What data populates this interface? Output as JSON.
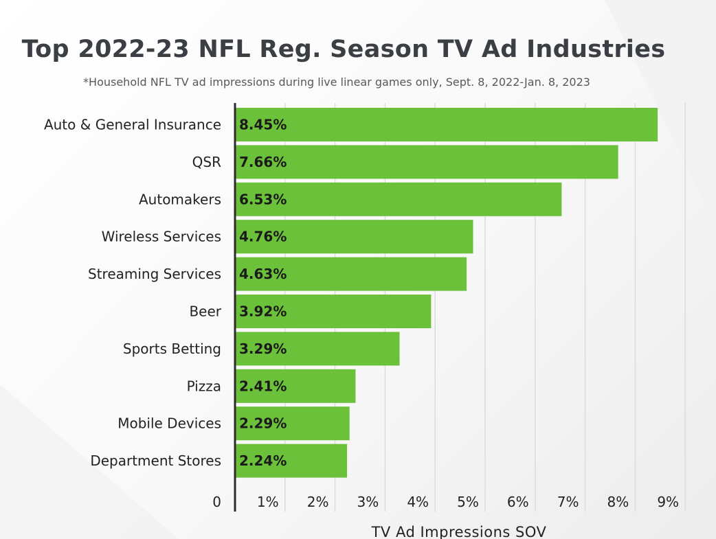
{
  "chart_data": {
    "type": "bar",
    "orientation": "horizontal",
    "title": "Top 2022-23 NFL Reg. Season TV Ad Industries",
    "subtitle": "*Household NFL TV ad impressions during live linear games only, Sept. 8, 2022-Jan. 8, 2023",
    "xlabel": "TV Ad Impressions SOV",
    "ylabel": "",
    "categories": [
      "Auto & General Insurance",
      "QSR",
      "Automakers",
      "Wireless Services",
      "Streaming Services",
      "Beer",
      "Sports Betting",
      "Pizza",
      "Mobile Devices",
      "Department Stores"
    ],
    "values": [
      8.45,
      7.66,
      6.53,
      4.76,
      4.63,
      3.92,
      3.29,
      2.41,
      2.29,
      2.24
    ],
    "value_labels": [
      "8.45%",
      "7.66%",
      "6.53%",
      "4.76%",
      "4.63%",
      "3.92%",
      "3.29%",
      "2.41%",
      "2.29%",
      "2.24%"
    ],
    "xlim": [
      0,
      9
    ],
    "x_ticks": [
      0,
      1,
      2,
      3,
      4,
      5,
      6,
      7,
      8,
      9
    ],
    "x_tick_labels": [
      "0",
      "1%",
      "2%",
      "3%",
      "4%",
      "5%",
      "6%",
      "7%",
      "8%",
      "9%"
    ],
    "grid": "vertical",
    "legend": "none",
    "bar_color": "#6cc13a",
    "grid_color": "#dcdcdc",
    "axis_color": "#2b2b2b"
  }
}
